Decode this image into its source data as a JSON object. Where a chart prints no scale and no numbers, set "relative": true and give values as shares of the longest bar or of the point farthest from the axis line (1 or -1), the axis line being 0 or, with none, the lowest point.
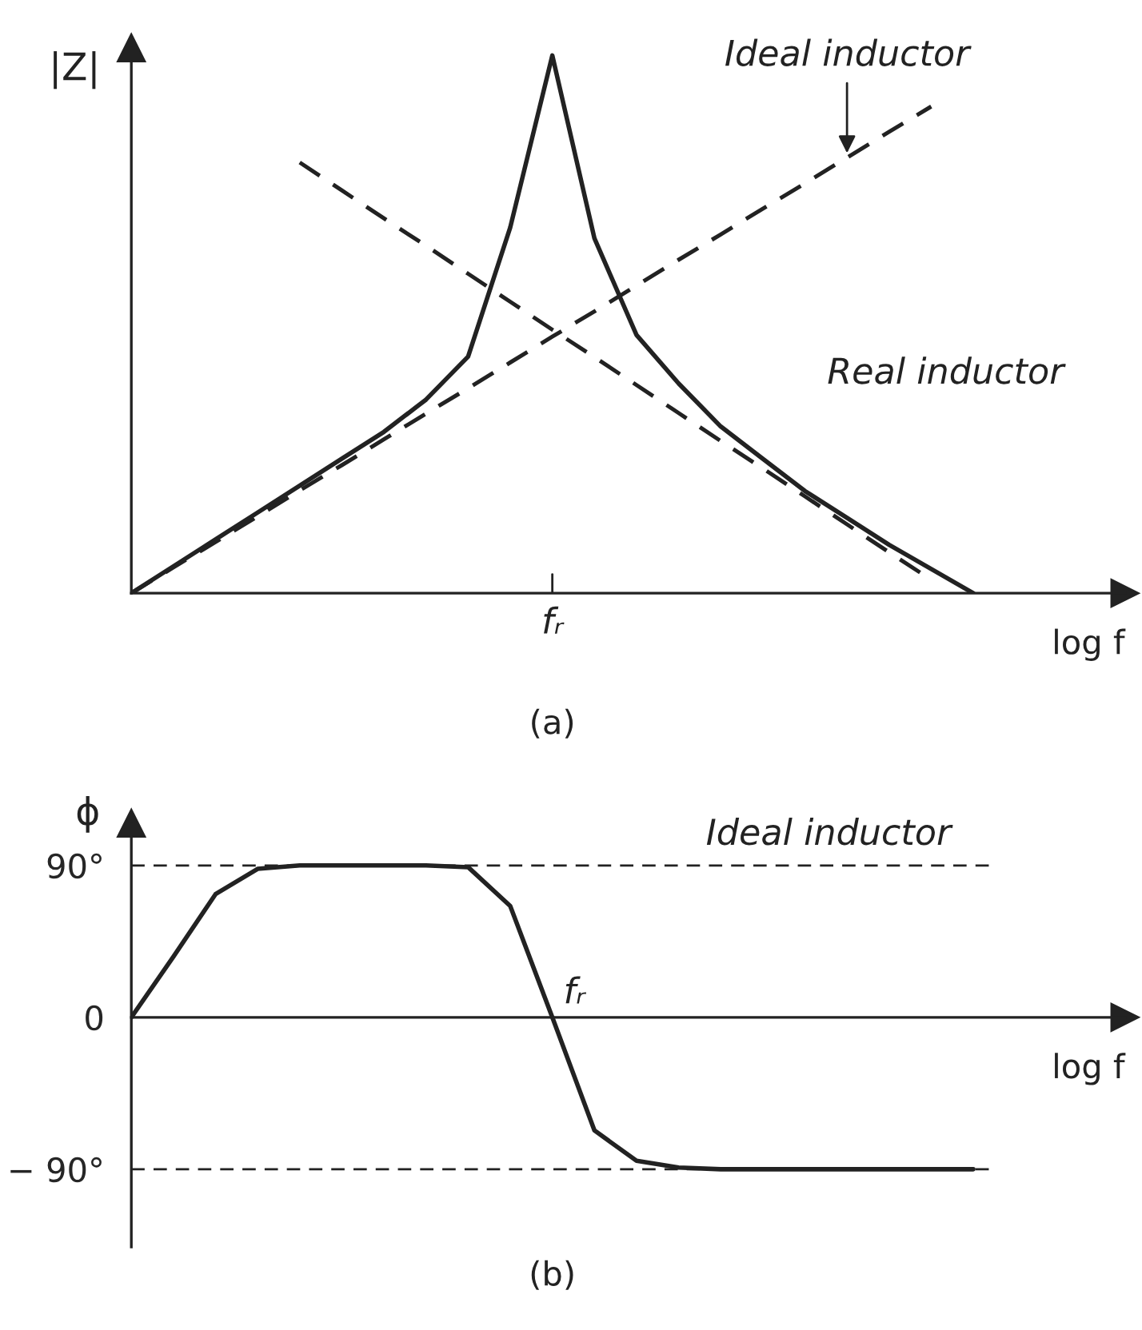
{
  "chart_data": [
    {
      "type": "line",
      "title": "(a)",
      "xlabel": "log f",
      "ylabel": "|Z|",
      "relative": true,
      "grid": false,
      "legend": false,
      "annotations": [
        "fᵣ"
      ],
      "categories": [
        null,
        null,
        null,
        null,
        null,
        null,
        null,
        null,
        null,
        null,
        null,
        null,
        null,
        null,
        null,
        null,
        null,
        null,
        null,
        null,
        null
      ],
      "series": [
        {
          "name": "Real inductor",
          "color": "#222222",
          "line_style": "solid",
          "values": [
            0,
            0.05,
            0.1,
            0.15,
            0.2,
            0.25,
            0.3,
            0.36,
            0.44,
            0.68,
            1.0,
            0.66,
            0.48,
            0.39,
            0.31,
            0.25,
            0.19,
            0.14,
            0.09,
            0.045,
            0
          ]
        },
        {
          "name": "Ideal inductor",
          "color": "#222222",
          "line_style": "dashed",
          "values": [
            0,
            0.048,
            0.095,
            0.143,
            0.191,
            0.238,
            0.286,
            0.334,
            0.381,
            0.429,
            0.477,
            0.524,
            0.572,
            0.62,
            0.667,
            0.715,
            0.762,
            0.81,
            0.858,
            0.905,
            null
          ]
        },
        {
          "color": "#222222",
          "line_style": "dashed",
          "values": [
            null,
            null,
            null,
            null,
            0.801,
            0.749,
            0.697,
            0.646,
            0.594,
            0.542,
            0.49,
            0.439,
            0.387,
            0.335,
            0.283,
            0.232,
            0.18,
            0.128,
            0.076,
            0.025,
            null
          ]
        }
      ]
    },
    {
      "type": "line",
      "title": "(b)",
      "xlabel": "log f",
      "ylabel": "ϕ",
      "grid": false,
      "legend": false,
      "annotations": [
        "fᵣ"
      ],
      "categories": [
        null,
        null,
        null,
        null,
        null,
        null,
        null,
        null,
        null,
        null,
        null,
        null,
        null,
        null,
        null,
        null,
        null,
        null,
        null,
        null,
        null
      ],
      "ylim": [
        -136,
        115
      ],
      "yticks": [
        {
          "value": 90,
          "label": "90°"
        },
        0,
        {
          "value": -90,
          "label": "− 90°"
        }
      ],
      "ref_lines": [
        {
          "axis": "y",
          "value": 90,
          "label": "Ideal inductor",
          "color": "#222222",
          "line_style": "dashed"
        },
        {
          "axis": "y",
          "value": -90,
          "label": null,
          "color": "#222222",
          "line_style": "dashed"
        }
      ],
      "series": [
        {
          "color": "#222222",
          "line_style": "solid",
          "values": [
            0,
            36,
            73,
            88,
            90,
            90,
            90,
            90,
            89,
            66,
            0,
            -67,
            -85,
            -89,
            -90,
            -90,
            -90,
            -90,
            -90,
            -90,
            -90
          ]
        }
      ]
    }
  ]
}
